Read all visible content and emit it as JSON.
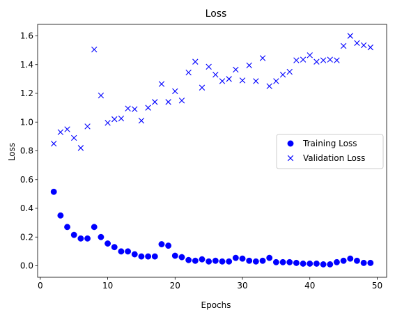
{
  "chart_data": {
    "type": "scatter",
    "title": "Loss",
    "xlabel": "Epochs",
    "ylabel": "Loss",
    "xlim": [
      -0.4,
      51.4
    ],
    "ylim": [
      -0.08,
      1.68
    ],
    "xticks": [
      0,
      10,
      20,
      30,
      40,
      50
    ],
    "yticks": [
      0.0,
      0.2,
      0.4,
      0.6,
      0.8,
      1.0,
      1.2,
      1.4,
      1.6
    ],
    "legend_position": "center-right",
    "grid": false,
    "series": [
      {
        "name": "Training Loss",
        "marker": "circle",
        "color": "#0000ff",
        "x": [
          2,
          3,
          4,
          5,
          6,
          7,
          8,
          9,
          10,
          11,
          12,
          13,
          14,
          15,
          16,
          17,
          18,
          19,
          20,
          21,
          22,
          23,
          24,
          25,
          26,
          27,
          28,
          29,
          30,
          31,
          32,
          33,
          34,
          35,
          36,
          37,
          38,
          39,
          40,
          41,
          42,
          43,
          44,
          45,
          46,
          47,
          48,
          49
        ],
        "y": [
          0.515,
          0.35,
          0.27,
          0.215,
          0.19,
          0.19,
          0.27,
          0.2,
          0.155,
          0.13,
          0.1,
          0.1,
          0.08,
          0.065,
          0.065,
          0.065,
          0.15,
          0.14,
          0.07,
          0.06,
          0.04,
          0.035,
          0.045,
          0.03,
          0.035,
          0.03,
          0.03,
          0.055,
          0.05,
          0.035,
          0.03,
          0.035,
          0.055,
          0.025,
          0.025,
          0.025,
          0.02,
          0.015,
          0.015,
          0.015,
          0.01,
          0.01,
          0.025,
          0.035,
          0.05,
          0.035,
          0.02,
          0.02
        ]
      },
      {
        "name": "Validation Loss",
        "marker": "x",
        "color": "#0000ff",
        "x": [
          2,
          3,
          4,
          5,
          6,
          7,
          8,
          9,
          10,
          11,
          12,
          13,
          14,
          15,
          16,
          17,
          18,
          19,
          20,
          21,
          22,
          23,
          24,
          25,
          26,
          27,
          28,
          29,
          30,
          31,
          32,
          33,
          34,
          35,
          36,
          37,
          38,
          39,
          40,
          41,
          42,
          43,
          44,
          45,
          46,
          47,
          48,
          49
        ],
        "y": [
          0.85,
          0.93,
          0.95,
          0.89,
          0.82,
          0.97,
          1.505,
          1.185,
          0.995,
          1.02,
          1.025,
          1.095,
          1.09,
          1.01,
          1.1,
          1.14,
          1.265,
          1.14,
          1.215,
          1.15,
          1.345,
          1.42,
          1.24,
          1.385,
          1.33,
          1.285,
          1.3,
          1.365,
          1.29,
          1.395,
          1.285,
          1.445,
          1.25,
          1.285,
          1.33,
          1.35,
          1.43,
          1.435,
          1.465,
          1.42,
          1.43,
          1.435,
          1.43,
          1.53,
          1.6,
          1.55,
          1.535,
          1.52
        ]
      }
    ]
  }
}
